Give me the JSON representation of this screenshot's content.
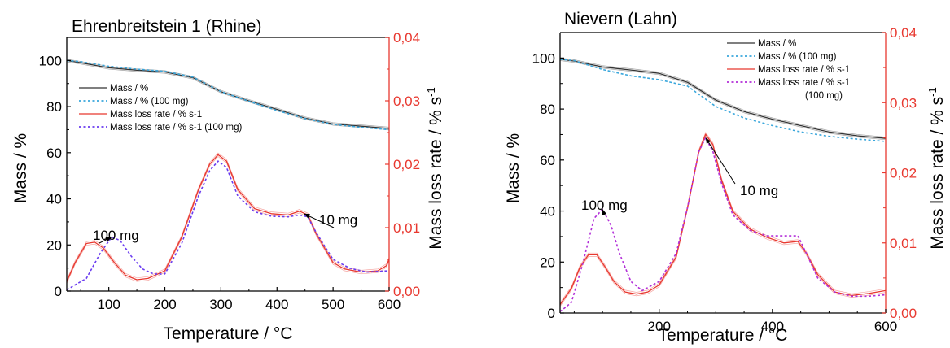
{
  "chart_data": [
    {
      "type": "line",
      "title": "Ehrenbreitstein 1 (Rhine)",
      "xlabel": "Temperature / °C",
      "ylabel": "Mass / %",
      "y2label": "Mass loss rate / % s-1",
      "xlim": [
        25,
        600
      ],
      "ylim": [
        0,
        110
      ],
      "y2lim": [
        0,
        0.04
      ],
      "xticks": [
        "100",
        "200",
        "300",
        "400",
        "500",
        "600"
      ],
      "yticks": [
        "0",
        "20",
        "40",
        "60",
        "80",
        "100"
      ],
      "y2ticks": [
        "0,00",
        "0,01",
        "0,02",
        "0,03",
        "0,04"
      ],
      "legend_position": "upper-left",
      "annotations": [
        {
          "text": "100 mg",
          "arrow_to": [
            105,
            0.0085
          ]
        },
        {
          "text": "10 mg",
          "arrow_to": [
            448,
            0.0122
          ]
        }
      ],
      "series": [
        {
          "name": "Mass / %",
          "axis": "left",
          "style": "solid",
          "color": "#333333",
          "x": [
            25,
            50,
            100,
            150,
            200,
            250,
            300,
            350,
            400,
            450,
            500,
            550,
            600
          ],
          "y": [
            100,
            99,
            96.8,
            95.8,
            95,
            92.5,
            86.5,
            82.5,
            78.8,
            75,
            72.5,
            71.5,
            70.5
          ]
        },
        {
          "name": "Mass / % (100 mg)",
          "axis": "left",
          "style": "dotted",
          "color": "#3aa7dc",
          "x": [
            25,
            50,
            100,
            150,
            200,
            250,
            300,
            350,
            400,
            450,
            500,
            550,
            600
          ],
          "y": [
            100,
            99.5,
            97.5,
            96.2,
            95.3,
            92.8,
            86.5,
            82.3,
            78.3,
            74.8,
            72.3,
            71,
            70
          ]
        },
        {
          "name": "Mass loss rate / % s-1",
          "axis": "right",
          "style": "solid",
          "color": "#e8382f",
          "x": [
            25,
            40,
            60,
            75,
            90,
            110,
            130,
            150,
            170,
            200,
            230,
            260,
            280,
            295,
            310,
            330,
            360,
            390,
            420,
            440,
            455,
            470,
            500,
            520,
            550,
            580,
            595,
            600
          ],
          "y": [
            0.0015,
            0.0045,
            0.0075,
            0.0077,
            0.0068,
            0.0045,
            0.0025,
            0.0018,
            0.002,
            0.0032,
            0.0085,
            0.016,
            0.02,
            0.0215,
            0.0205,
            0.016,
            0.013,
            0.0122,
            0.012,
            0.0126,
            0.012,
            0.009,
            0.0045,
            0.0035,
            0.003,
            0.0032,
            0.004,
            0.005
          ]
        },
        {
          "name": "Mass loss rate / % s-1 (100 mg)",
          "axis": "right",
          "style": "dotted",
          "color": "#6a3cf0",
          "x": [
            25,
            60,
            85,
            105,
            120,
            140,
            160,
            180,
            200,
            230,
            260,
            280,
            295,
            310,
            330,
            360,
            390,
            420,
            440,
            455,
            470,
            500,
            530,
            560,
            600
          ],
          "y": [
            0.0002,
            0.002,
            0.006,
            0.0085,
            0.008,
            0.0055,
            0.0035,
            0.0027,
            0.0027,
            0.0075,
            0.015,
            0.019,
            0.0205,
            0.0195,
            0.015,
            0.0125,
            0.0118,
            0.0117,
            0.012,
            0.0117,
            0.0092,
            0.005,
            0.0036,
            0.003,
            0.0032
          ]
        }
      ]
    },
    {
      "type": "line",
      "title": "Nievern (Lahn)",
      "xlabel": "Temperature / °C",
      "ylabel": "Mass / %",
      "y2label": "Mass loss rate / % s-1",
      "xlim": [
        25,
        600
      ],
      "ylim": [
        0,
        110
      ],
      "y2lim": [
        0,
        0.04
      ],
      "xticks": [
        "200",
        "400",
        "600"
      ],
      "yticks": [
        "0",
        "20",
        "40",
        "60",
        "80",
        "100"
      ],
      "y2ticks": [
        "0,00",
        "0,01",
        "0,02",
        "0,03",
        "0,04"
      ],
      "legend_position": "upper-right",
      "annotations": [
        {
          "text": "100 mg",
          "arrow_to": [
            100,
            0.0148
          ]
        },
        {
          "text": "10 mg",
          "arrow_to": [
            282,
            0.025
          ]
        }
      ],
      "series": [
        {
          "name": "Mass / %",
          "axis": "left",
          "style": "solid",
          "color": "#333333",
          "x": [
            25,
            50,
            100,
            150,
            200,
            250,
            300,
            350,
            400,
            450,
            500,
            550,
            600
          ],
          "y": [
            99.5,
            98.8,
            96.5,
            95.3,
            94,
            90.5,
            83.5,
            79,
            76,
            73.5,
            71,
            69.5,
            68.5
          ]
        },
        {
          "name": "Mass / % (100 mg)",
          "axis": "left",
          "style": "dotted",
          "color": "#3aa7dc",
          "x": [
            25,
            50,
            100,
            150,
            200,
            250,
            300,
            350,
            400,
            450,
            500,
            550,
            600
          ],
          "y": [
            99.5,
            99,
            95.5,
            93,
            91.5,
            89,
            81,
            76.5,
            73.5,
            71,
            69.3,
            68.2,
            67.3
          ]
        },
        {
          "name": "Mass loss rate / % s-1",
          "axis": "right",
          "style": "solid",
          "color": "#e8382f",
          "x": [
            25,
            45,
            60,
            75,
            90,
            105,
            120,
            140,
            160,
            180,
            200,
            230,
            250,
            270,
            282,
            295,
            310,
            330,
            360,
            390,
            420,
            445,
            460,
            480,
            510,
            540,
            570,
            600
          ],
          "y": [
            0.0012,
            0.0035,
            0.0065,
            0.0083,
            0.0083,
            0.0065,
            0.0045,
            0.003,
            0.0027,
            0.003,
            0.004,
            0.008,
            0.015,
            0.023,
            0.0255,
            0.024,
            0.019,
            0.0145,
            0.012,
            0.0108,
            0.01,
            0.0102,
            0.0085,
            0.0055,
            0.003,
            0.0025,
            0.0028,
            0.0032
          ]
        },
        {
          "name": "Mass loss rate / % s-1",
          "name_suffix": "(100 mg)",
          "axis": "right",
          "style": "dotted",
          "color": "#b22fd8",
          "x": [
            25,
            45,
            65,
            85,
            100,
            115,
            130,
            150,
            170,
            200,
            230,
            250,
            270,
            282,
            295,
            310,
            330,
            360,
            390,
            420,
            445,
            460,
            480,
            510,
            540,
            570,
            600
          ],
          "y": [
            0.0002,
            0.0015,
            0.007,
            0.0135,
            0.0148,
            0.0125,
            0.0085,
            0.0045,
            0.0032,
            0.0045,
            0.0085,
            0.015,
            0.023,
            0.025,
            0.023,
            0.0185,
            0.014,
            0.0118,
            0.011,
            0.011,
            0.011,
            0.0085,
            0.005,
            0.003,
            0.0024,
            0.0024,
            0.0026
          ]
        }
      ]
    }
  ]
}
